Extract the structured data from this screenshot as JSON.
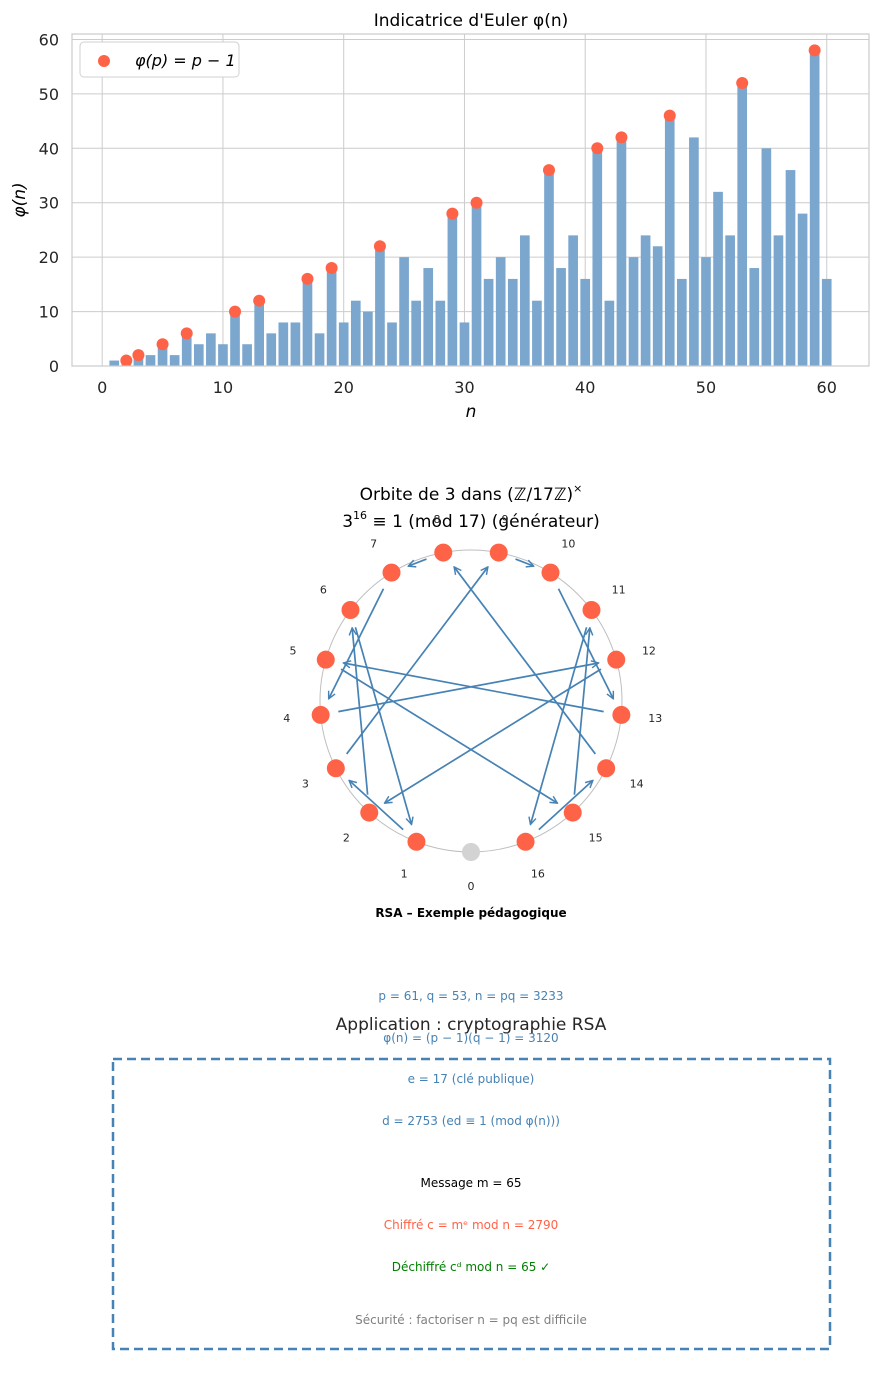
{
  "chart_data": [
    {
      "type": "bar",
      "title": "Indicatrice d'Euler φ(n)",
      "xlabel": "n",
      "ylabel": "φ(n)",
      "xlim": [
        -2.5,
        63.5
      ],
      "ylim": [
        0,
        61
      ],
      "x_ticks": [
        0,
        10,
        20,
        30,
        40,
        50,
        60
      ],
      "y_ticks": [
        0,
        10,
        20,
        30,
        40,
        50,
        60
      ],
      "grid": true,
      "legend": {
        "position": "top-left",
        "label": "φ(p) = p − 1"
      },
      "bar_color": "#7ba7cf",
      "marker_color": "#ff6347",
      "x": [
        1,
        2,
        3,
        4,
        5,
        6,
        7,
        8,
        9,
        10,
        11,
        12,
        13,
        14,
        15,
        16,
        17,
        18,
        19,
        20,
        21,
        22,
        23,
        24,
        25,
        26,
        27,
        28,
        29,
        30,
        31,
        32,
        33,
        34,
        35,
        36,
        37,
        38,
        39,
        40,
        41,
        42,
        43,
        44,
        45,
        46,
        47,
        48,
        49,
        50,
        51,
        52,
        53,
        54,
        55,
        56,
        57,
        58,
        59,
        60
      ],
      "values": [
        1,
        1,
        2,
        2,
        4,
        2,
        6,
        4,
        6,
        4,
        10,
        4,
        12,
        6,
        8,
        8,
        16,
        6,
        18,
        8,
        12,
        10,
        22,
        8,
        20,
        12,
        18,
        12,
        28,
        8,
        30,
        16,
        20,
        16,
        24,
        12,
        36,
        18,
        24,
        16,
        40,
        12,
        42,
        20,
        24,
        22,
        46,
        16,
        42,
        20,
        32,
        24,
        52,
        18,
        40,
        24,
        36,
        28,
        58,
        16
      ],
      "primes": [
        2,
        3,
        5,
        7,
        11,
        13,
        17,
        19,
        23,
        29,
        31,
        37,
        41,
        43,
        47,
        53,
        59
      ],
      "prime_values": [
        1,
        2,
        4,
        6,
        10,
        12,
        16,
        18,
        22,
        28,
        30,
        36,
        40,
        42,
        46,
        52,
        58
      ]
    },
    {
      "type": "circular-orbit",
      "title_line1": "Orbite de 3 dans (ℤ/17ℤ)",
      "title_sup": "×",
      "title_line2_base": "3",
      "title_line2_exp": "16",
      "title_line2_rest": " ≡ 1 (mod 17) (générateur)",
      "modulus": 17,
      "generator": 3,
      "node_labels": [
        "0",
        "1",
        "2",
        "3",
        "4",
        "5",
        "6",
        "7",
        "8",
        "9",
        "10",
        "11",
        "12",
        "13",
        "14",
        "15",
        "16"
      ],
      "orbit": [
        1,
        3,
        9,
        10,
        13,
        5,
        15,
        11,
        16,
        14,
        8,
        7,
        4,
        12,
        2,
        6
      ],
      "node_color": "#ff6347",
      "zero_color": "#d3d3d3",
      "arrow_color": "#4682b4"
    }
  ],
  "rsa": {
    "title": "Application : cryptographie RSA",
    "subtitle": "RSA – Exemple pédagogique",
    "line_p_q_n": "p = 61, q = 53, n = pq = 3233",
    "line_phi": "φ(n) = (p − 1)(q − 1) = 3120",
    "line_e": "e = 17 (clé publique)",
    "line_d": "d = 2753 (ed ≡ 1 (mod φ(n)))",
    "line_message": "Message m = 65",
    "line_cipher": "Chiffré c = mᵉ mod n = 2790",
    "line_decipher": "Déchiffré cᵈ mod n = 65 ✓",
    "line_security": "Sécurité : factoriser n = pq est difficile",
    "colors": {
      "params": "#4682b4",
      "message": "#000000",
      "cipher": "#ff6347",
      "decipher": "#008000",
      "security": "#808080",
      "box": "#4682b4"
    }
  }
}
